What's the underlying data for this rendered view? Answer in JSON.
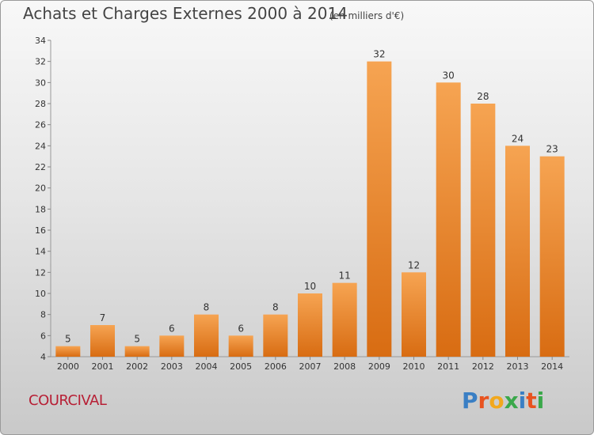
{
  "header": {
    "title": "Achats et Charges Externes 2000 à 2014",
    "unit": "(en milliers d'€)"
  },
  "footer": {
    "commune": "COURCIVAL",
    "logo_text": "Proxiti"
  },
  "colors": {
    "bar_light": "#f6a452",
    "bar_dark": "#d86c12",
    "commune_text": "#b71f35"
  },
  "chart_data": {
    "type": "bar",
    "title": "Achats et Charges Externes 2000 à 2014",
    "subtitle": "(en milliers d'€)",
    "xlabel": "",
    "ylabel": "",
    "categories": [
      "2000",
      "2001",
      "2002",
      "2003",
      "2004",
      "2005",
      "2006",
      "2007",
      "2008",
      "2009",
      "2010",
      "2011",
      "2012",
      "2013",
      "2014"
    ],
    "values": [
      5,
      7,
      5,
      6,
      8,
      6,
      8,
      10,
      11,
      32,
      12,
      30,
      28,
      24,
      23
    ],
    "ylim": [
      4,
      34
    ],
    "yticks": [
      4,
      6,
      8,
      10,
      12,
      14,
      16,
      18,
      20,
      22,
      24,
      26,
      28,
      30,
      32,
      34
    ],
    "grid": false,
    "data_labels": true,
    "legend": "none"
  }
}
